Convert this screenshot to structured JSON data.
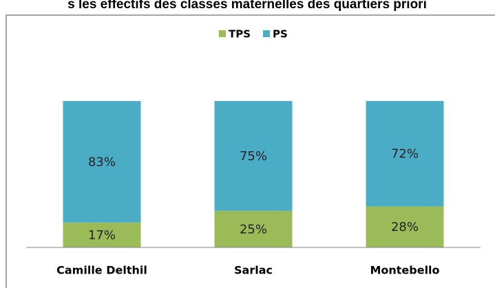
{
  "chart_data": {
    "type": "stacked_bar",
    "title": "s les effectifs des classes maternelles des quartiers priori",
    "categories": [
      "Camille Delthil",
      "Sarlac",
      "Montebello"
    ],
    "series": [
      {
        "name": "TPS",
        "color": "#9bbb59",
        "values": [
          17,
          25,
          28
        ],
        "value_labels": [
          "17%",
          "25%",
          "28%"
        ]
      },
      {
        "name": "PS",
        "color": "#4bacc6",
        "values": [
          83,
          75,
          72
        ],
        "value_labels": [
          "83%",
          "75%",
          "72%"
        ]
      }
    ],
    "ylim": [
      0,
      100
    ],
    "legend": "top"
  }
}
